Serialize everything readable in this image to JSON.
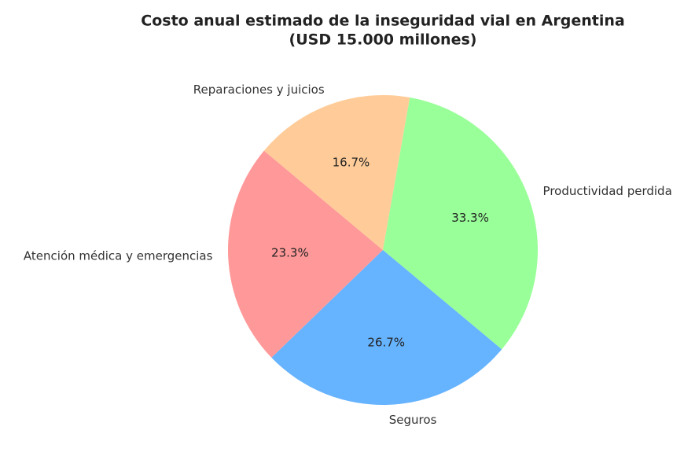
{
  "chart_data": {
    "type": "pie",
    "title": "Costo anual estimado de la inseguridad vial en Argentina",
    "subtitle": "(USD 15.000 millones)",
    "categories": [
      "Productividad perdida",
      "Seguros",
      "Atención médica y emergencias",
      "Reparaciones y juicios"
    ],
    "values": [
      33.3,
      26.7,
      23.3,
      16.7
    ],
    "value_labels": [
      "33.3%",
      "26.7%",
      "23.3%",
      "16.7%"
    ],
    "colors": [
      "#99ff99",
      "#66b3ff",
      "#ff9999",
      "#ffcc99"
    ],
    "startangle": 80,
    "direction": "clockwise"
  }
}
